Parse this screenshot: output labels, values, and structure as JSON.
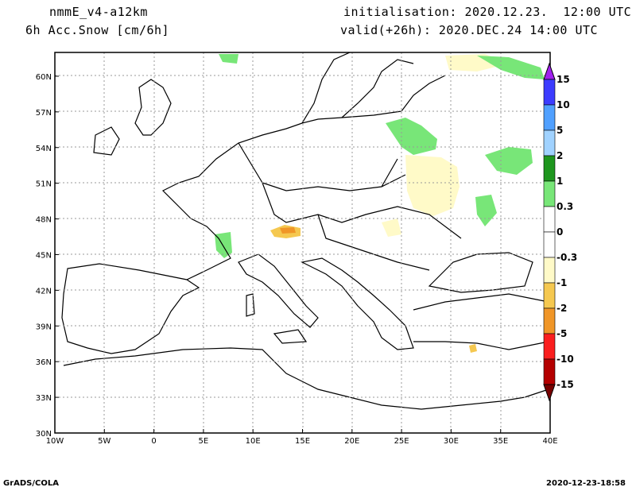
{
  "header": {
    "model": "nmmE_v4-a12km",
    "field": "6h Acc.Snow [cm/6h]",
    "init": "initialisation: 2020.12.23.  12:00 UTC",
    "valid": "valid(+26h): 2020.DEC.24 14:00 UTC"
  },
  "footer": {
    "left": "GrADS/COLA",
    "right": "2020-12-23-18:58"
  },
  "map": {
    "lon_labels": [
      "10W",
      "5W",
      "0",
      "5E",
      "10E",
      "15E",
      "20E",
      "25E",
      "30E",
      "35E",
      "40E"
    ],
    "lat_labels": [
      "30N",
      "33N",
      "36N",
      "39N",
      "42N",
      "45N",
      "48N",
      "51N",
      "54N",
      "57N",
      "60N"
    ],
    "lon_range": [
      -10,
      40
    ],
    "lat_range": [
      30,
      62
    ],
    "gridlines": true
  },
  "colorbar": {
    "labels": [
      "15",
      "10",
      "5",
      "2",
      "1",
      "0.3",
      "0",
      "-0.3",
      "-1",
      "-2",
      "-5",
      "-10",
      "-15"
    ],
    "colors": [
      "#a020f0",
      "#3c3cff",
      "#50a0ff",
      "#a0d2ff",
      "#1e961e",
      "#78e678",
      "#ffffff",
      "#ffffff",
      "#fffac8",
      "#f5c850",
      "#f09628",
      "#fa1e1e",
      "#b40000",
      "#780000"
    ]
  }
}
